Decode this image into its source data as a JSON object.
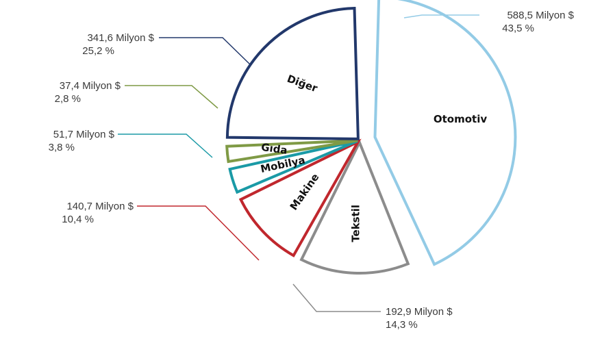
{
  "chart_data": {
    "type": "pie",
    "title": "",
    "unit": "Milyon $",
    "slices": [
      {
        "label": "Otomotiv",
        "value": 588.5,
        "value_text": "588,5 Milyon $",
        "percent_text": "43,5 %",
        "color": "#93cbe6"
      },
      {
        "label": "Tekstil",
        "value": 192.9,
        "value_text": "192,9 Milyon $",
        "percent_text": "14,3 %",
        "color": "#8c8c8c"
      },
      {
        "label": "Makine",
        "value": 140.7,
        "value_text": "140,7 Milyon $",
        "percent_text": "10,4 %",
        "color": "#c0272d"
      },
      {
        "label": "Mobilya",
        "value": 51.7,
        "value_text": "51,7 Milyon $",
        "percent_text": "3,8 %",
        "color": "#1a9aa6"
      },
      {
        "label": "Gıda",
        "value": 37.4,
        "value_text": "37,4 Milyon $",
        "percent_text": "2,8 %",
        "color": "#7f9a45"
      },
      {
        "label": "Diğer",
        "value": 341.6,
        "value_text": "341,6 Milyon $",
        "percent_text": "25,2 %",
        "color": "#22386b"
      }
    ]
  }
}
